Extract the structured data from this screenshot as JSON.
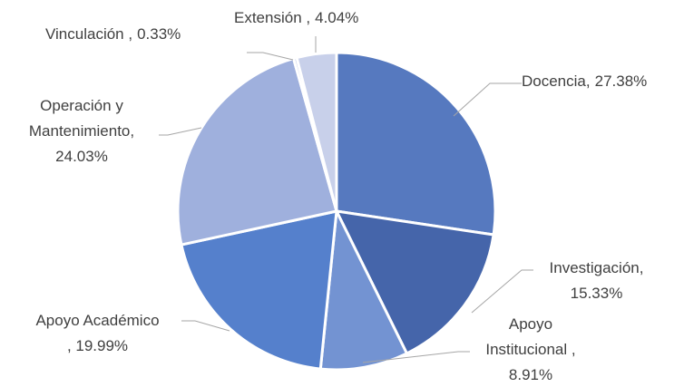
{
  "chart_data": {
    "type": "pie",
    "categories": [
      "Docencia,",
      "Investigación,",
      "Apoyo\nInstitucional ,",
      "Apoyo Académico",
      "Operación y\nMantenimiento,",
      "Vinculación ,",
      "Extensión ,"
    ],
    "values": [
      27.38,
      15.33,
      8.91,
      19.99,
      24.03,
      0.33,
      4.04
    ],
    "value_labels": [
      "27.38%",
      "15.33%",
      "8.91%",
      ", 19.99%",
      "24.03%",
      "0.33%",
      "4.04%"
    ],
    "colors": [
      "#5679bf",
      "#4565aa",
      "#7393d2",
      "#5580cc",
      "#9fb0dd",
      "#b8c4e6",
      "#c8d0ea"
    ]
  }
}
